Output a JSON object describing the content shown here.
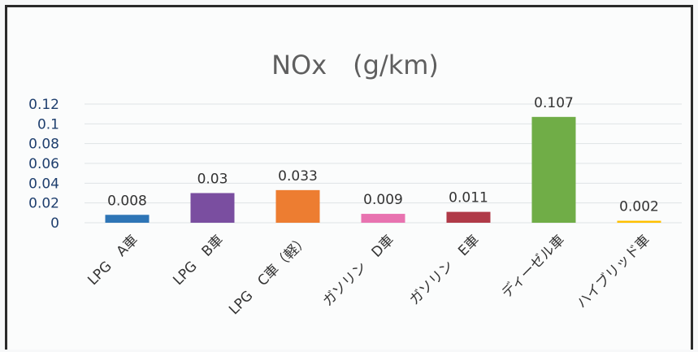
{
  "chart_data": {
    "type": "bar",
    "title": "NOx　(g/km)",
    "xlabel": "",
    "ylabel": "",
    "ylim": [
      0,
      0.12
    ],
    "yticks": [
      "0",
      "0.02",
      "0.04",
      "0.06",
      "0.08",
      "0.1",
      "0.12"
    ],
    "grid": true,
    "legend": "none",
    "categories": [
      "LPG　A車",
      "LPG　B車",
      "LPG　C車（軽）",
      "ガソリン　D車",
      "ガソリン　E車",
      "ディーゼル車",
      "ハイブリッド車"
    ],
    "values": [
      0.008,
      0.03,
      0.033,
      0.009,
      0.011,
      0.107,
      0.002
    ],
    "data_labels": [
      "0.008",
      "0.03",
      "0.033",
      "0.009",
      "0.011",
      "0.107",
      "0.002"
    ],
    "colors": [
      "#2e75b6",
      "#7a4ea0",
      "#ed7d31",
      "#e873b0",
      "#b03a48",
      "#70ad47",
      "#ffc000"
    ]
  }
}
